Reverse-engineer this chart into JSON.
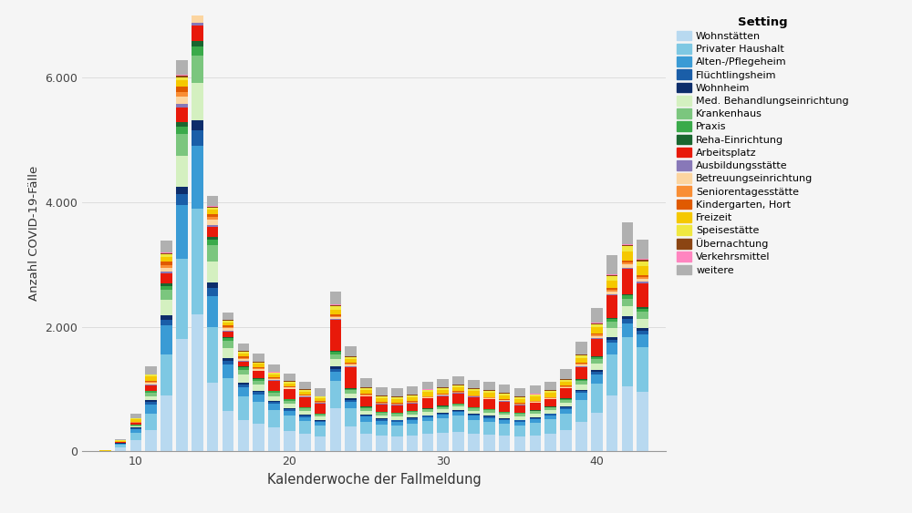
{
  "weeks": [
    8,
    9,
    10,
    11,
    12,
    13,
    14,
    15,
    16,
    17,
    18,
    19,
    20,
    21,
    22,
    23,
    24,
    25,
    26,
    27,
    28,
    29,
    30,
    31,
    32,
    33,
    34,
    35,
    36,
    37,
    38,
    39,
    40,
    41,
    42,
    43
  ],
  "settings": [
    "Wohnstätten",
    "Privater Haushalt",
    "Alten-/Pflegeheim",
    "Flüchtlingsheim",
    "Wohnheim",
    "Med. Behandlungseinrichtung",
    "Krankenhaus",
    "Praxis",
    "Reha-Einrichtung",
    "Arbeitsplatz",
    "Ausbildungsstätte",
    "Betreuungseinrichtung",
    "Seniorentagesstätte",
    "Kindergarten, Hort",
    "Freizeit",
    "Speisestätte",
    "Übernachtung",
    "Verkehrsmittel",
    "weitere"
  ],
  "colors": [
    "#b8d9f0",
    "#7ec8e3",
    "#3a9bd5",
    "#1a5ea8",
    "#0d2d6b",
    "#d4f0c0",
    "#7bc67e",
    "#3aaa4a",
    "#1a6630",
    "#e8190a",
    "#8878b8",
    "#fcd5a0",
    "#f98e35",
    "#e05a00",
    "#f5c800",
    "#f0e840",
    "#8b4513",
    "#ff85c0",
    "#b0b0b0"
  ],
  "data": {
    "Wohnstätten": [
      10,
      70,
      180,
      350,
      900,
      1800,
      2200,
      1100,
      650,
      500,
      450,
      380,
      330,
      280,
      240,
      700,
      400,
      280,
      250,
      240,
      260,
      280,
      300,
      320,
      290,
      270,
      250,
      240,
      260,
      290,
      340,
      480,
      620,
      900,
      1050,
      950
    ],
    "Privater Haushalt": [
      0,
      40,
      120,
      250,
      650,
      1300,
      1700,
      900,
      520,
      380,
      340,
      290,
      250,
      210,
      175,
      430,
      290,
      200,
      180,
      175,
      190,
      210,
      230,
      250,
      220,
      210,
      190,
      180,
      200,
      230,
      270,
      350,
      470,
      650,
      780,
      720
    ],
    "Alten-/Pflegeheim": [
      0,
      15,
      60,
      150,
      480,
      850,
      1000,
      500,
      220,
      150,
      120,
      90,
      75,
      60,
      55,
      150,
      110,
      75,
      65,
      65,
      60,
      60,
      60,
      60,
      60,
      60,
      60,
      60,
      60,
      60,
      75,
      110,
      150,
      190,
      230,
      210
    ],
    "Flüchtlingsheim": [
      0,
      4,
      15,
      45,
      90,
      180,
      250,
      130,
      65,
      48,
      42,
      32,
      28,
      24,
      20,
      50,
      32,
      22,
      20,
      20,
      20,
      20,
      20,
      20,
      20,
      20,
      20,
      20,
      20,
      20,
      24,
      32,
      40,
      55,
      65,
      60
    ],
    "Wohnheim": [
      0,
      3,
      10,
      28,
      60,
      120,
      170,
      85,
      40,
      30,
      24,
      18,
      15,
      13,
      11,
      30,
      18,
      14,
      11,
      11,
      11,
      11,
      11,
      11,
      11,
      11,
      11,
      11,
      11,
      11,
      14,
      18,
      26,
      38,
      46,
      42
    ],
    "Med. Behandlungseinrichtung": [
      0,
      4,
      16,
      65,
      250,
      500,
      600,
      340,
      160,
      120,
      95,
      80,
      72,
      64,
      56,
      120,
      80,
      64,
      56,
      56,
      56,
      56,
      56,
      56,
      56,
      56,
      56,
      56,
      56,
      56,
      64,
      80,
      105,
      145,
      160,
      152
    ],
    "Krankenhaus": [
      0,
      4,
      16,
      55,
      165,
      340,
      430,
      260,
      125,
      85,
      65,
      56,
      48,
      40,
      36,
      82,
      58,
      40,
      36,
      36,
      36,
      36,
      36,
      36,
      36,
      36,
      36,
      36,
      36,
      36,
      40,
      58,
      75,
      106,
      122,
      114
    ],
    "Praxis": [
      0,
      2,
      8,
      24,
      65,
      125,
      155,
      85,
      40,
      32,
      24,
      20,
      16,
      14,
      12,
      32,
      20,
      16,
      12,
      12,
      12,
      12,
      12,
      12,
      12,
      12,
      12,
      12,
      12,
      12,
      16,
      20,
      28,
      40,
      48,
      44
    ],
    "Reha-Einrichtung": [
      0,
      1,
      4,
      12,
      32,
      68,
      88,
      44,
      20,
      16,
      12,
      10,
      8,
      7,
      6,
      16,
      10,
      8,
      6,
      6,
      6,
      6,
      6,
      6,
      6,
      6,
      6,
      6,
      6,
      6,
      8,
      10,
      14,
      20,
      24,
      22
    ],
    "Arbeitsplatz": [
      0,
      4,
      24,
      80,
      160,
      240,
      240,
      160,
      80,
      80,
      120,
      160,
      160,
      160,
      160,
      500,
      340,
      160,
      120,
      120,
      120,
      160,
      160,
      160,
      160,
      160,
      160,
      120,
      120,
      120,
      160,
      200,
      280,
      360,
      400,
      380
    ],
    "Ausbildungsstätte": [
      0,
      2,
      6,
      16,
      32,
      50,
      50,
      32,
      16,
      12,
      8,
      6,
      6,
      6,
      6,
      16,
      12,
      8,
      6,
      6,
      6,
      6,
      6,
      6,
      6,
      6,
      6,
      6,
      6,
      6,
      8,
      12,
      16,
      24,
      28,
      26
    ],
    "Betreuungseinrichtung": [
      0,
      2,
      8,
      24,
      64,
      120,
      120,
      80,
      40,
      32,
      24,
      20,
      16,
      16,
      12,
      32,
      20,
      16,
      12,
      12,
      12,
      12,
      12,
      12,
      12,
      12,
      12,
      12,
      12,
      12,
      16,
      20,
      28,
      40,
      48,
      44
    ],
    "Seniorentagesstätte": [
      0,
      2,
      6,
      20,
      48,
      82,
      82,
      50,
      24,
      20,
      16,
      12,
      10,
      10,
      8,
      20,
      14,
      10,
      8,
      8,
      8,
      8,
      8,
      8,
      8,
      8,
      8,
      8,
      8,
      8,
      10,
      14,
      20,
      28,
      32,
      30
    ],
    "Kindergarten, Hort": [
      0,
      2,
      6,
      20,
      48,
      82,
      82,
      50,
      24,
      20,
      16,
      12,
      10,
      10,
      8,
      20,
      14,
      10,
      8,
      8,
      8,
      8,
      8,
      8,
      8,
      8,
      8,
      8,
      8,
      8,
      10,
      14,
      20,
      28,
      32,
      30
    ],
    "Freizeit": [
      4,
      16,
      40,
      65,
      82,
      100,
      82,
      65,
      50,
      50,
      50,
      50,
      50,
      50,
      50,
      82,
      65,
      65,
      65,
      65,
      65,
      65,
      65,
      65,
      65,
      65,
      65,
      65,
      65,
      65,
      65,
      82,
      100,
      125,
      148,
      148
    ],
    "Speisestätte": [
      0,
      4,
      12,
      24,
      40,
      50,
      40,
      32,
      24,
      24,
      24,
      24,
      24,
      24,
      24,
      50,
      32,
      32,
      32,
      32,
      32,
      32,
      32,
      32,
      32,
      32,
      32,
      32,
      32,
      32,
      32,
      40,
      50,
      65,
      82,
      82
    ],
    "Übernachtung": [
      0,
      2,
      4,
      8,
      16,
      24,
      20,
      16,
      12,
      12,
      10,
      8,
      8,
      8,
      8,
      20,
      14,
      10,
      8,
      8,
      8,
      8,
      8,
      8,
      8,
      8,
      8,
      8,
      8,
      8,
      10,
      12,
      16,
      20,
      24,
      22
    ],
    "Verkehrsmittel": [
      0,
      1,
      2,
      4,
      8,
      12,
      10,
      8,
      6,
      6,
      5,
      4,
      4,
      4,
      4,
      10,
      6,
      5,
      4,
      4,
      4,
      4,
      4,
      4,
      4,
      4,
      4,
      4,
      4,
      4,
      5,
      6,
      8,
      10,
      12,
      11
    ],
    "weitere": [
      4,
      24,
      65,
      120,
      200,
      240,
      225,
      160,
      120,
      120,
      120,
      120,
      120,
      120,
      120,
      200,
      160,
      145,
      130,
      130,
      130,
      130,
      130,
      130,
      130,
      130,
      130,
      130,
      130,
      130,
      160,
      200,
      240,
      305,
      340,
      320
    ]
  },
  "xlabel": "Kalenderwoche der Fallmeldung",
  "ylabel": "Anzahl COVID-19-Fälle",
  "legend_title": "Setting",
  "ylim": [
    0,
    7000
  ],
  "yticks": [
    0,
    2000,
    4000,
    6000
  ],
  "xticks": [
    10,
    20,
    30,
    40
  ],
  "background_color": "#f5f5f5",
  "grid_color": "#dddddd"
}
